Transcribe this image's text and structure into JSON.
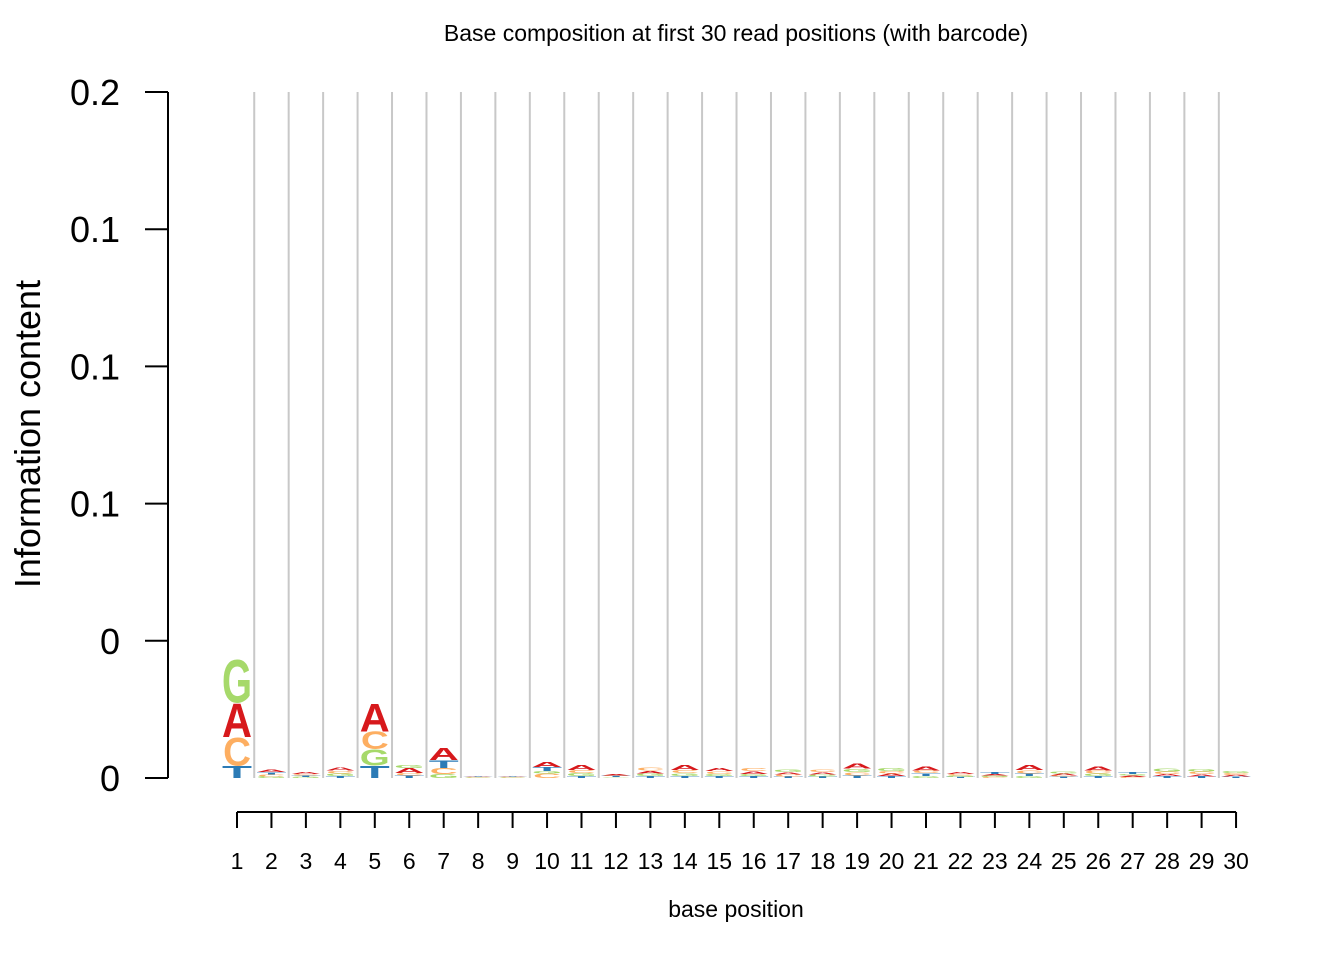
{
  "chart_data": {
    "type": "sequence-logo",
    "title": "Base composition at first 30 read positions (with barcode)",
    "xlabel": "base position",
    "ylabel": "Information content",
    "ylim": [
      0,
      0.25
    ],
    "yticks": [
      0,
      0.05,
      0.1,
      0.15,
      0.2,
      0.25
    ],
    "ytick_labels": [
      "0",
      "0",
      "0.1",
      "0.1",
      "0.1",
      "0.2"
    ],
    "xticks": [
      1,
      2,
      3,
      4,
      5,
      6,
      7,
      8,
      9,
      10,
      11,
      12,
      13,
      14,
      15,
      16,
      17,
      18,
      19,
      20,
      21,
      22,
      23,
      24,
      25,
      26,
      27,
      28,
      29,
      30
    ],
    "xtick_labels": [
      "1",
      "2",
      "3",
      "4",
      "5",
      "6",
      "7",
      "8",
      "9",
      "10",
      "11",
      "12",
      "13",
      "14",
      "15",
      "16",
      "17",
      "18",
      "19",
      "20",
      "21",
      "22",
      "23",
      "24",
      "25",
      "26",
      "27",
      "28",
      "29",
      "30"
    ],
    "grid": "vertical",
    "letters": [
      "T",
      "C",
      "G",
      "A"
    ],
    "colors": {
      "A": "#d7191c",
      "C": "#fdae61",
      "G": "#a6d96a",
      "T": "#2c7bb6",
      "grid": "#c8c8c8"
    },
    "positions": [
      {
        "pos": 1,
        "stack": [
          [
            "T",
            0.0045
          ],
          [
            "C",
            0.0105
          ],
          [
            "A",
            0.0125
          ],
          [
            "G",
            0.016
          ]
        ]
      },
      {
        "pos": 2,
        "stack": [
          [
            "G",
            0.0006
          ],
          [
            "C",
            0.0007
          ],
          [
            "T",
            0.0008
          ],
          [
            "A",
            0.001
          ]
        ]
      },
      {
        "pos": 3,
        "stack": [
          [
            "G",
            0.0004
          ],
          [
            "T",
            0.0005
          ],
          [
            "C",
            0.0005
          ],
          [
            "A",
            0.0006
          ]
        ]
      },
      {
        "pos": 4,
        "stack": [
          [
            "T",
            0.0008
          ],
          [
            "G",
            0.0009
          ],
          [
            "C",
            0.001
          ],
          [
            "A",
            0.0013
          ]
        ]
      },
      {
        "pos": 5,
        "stack": [
          [
            "T",
            0.0045
          ],
          [
            "G",
            0.006
          ],
          [
            "C",
            0.0065
          ],
          [
            "A",
            0.0105
          ]
        ]
      },
      {
        "pos": 6,
        "stack": [
          [
            "T",
            0.0009
          ],
          [
            "C",
            0.001
          ],
          [
            "A",
            0.0018
          ],
          [
            "G",
            0.0013
          ]
        ]
      },
      {
        "pos": 7,
        "stack": [
          [
            "G",
            0.0015
          ],
          [
            "C",
            0.0022
          ],
          [
            "T",
            0.0028
          ],
          [
            "A",
            0.0045
          ]
        ]
      },
      {
        "pos": 8,
        "stack": [
          [
            "G",
            0.0002
          ],
          [
            "C",
            0.0002
          ],
          [
            "T",
            0.0002
          ],
          [
            "A",
            0.0002
          ]
        ]
      },
      {
        "pos": 9,
        "stack": [
          [
            "G",
            0.0002
          ],
          [
            "C",
            0.0002
          ],
          [
            "T",
            0.0002
          ],
          [
            "A",
            0.0002
          ]
        ]
      },
      {
        "pos": 10,
        "stack": [
          [
            "C",
            0.0016
          ],
          [
            "G",
            0.001
          ],
          [
            "T",
            0.0014
          ],
          [
            "A",
            0.002
          ]
        ]
      },
      {
        "pos": 11,
        "stack": [
          [
            "T",
            0.0007
          ],
          [
            "G",
            0.0011
          ],
          [
            "C",
            0.0011
          ],
          [
            "A",
            0.0018
          ]
        ]
      },
      {
        "pos": 12,
        "stack": [
          [
            "G",
            0.0003
          ],
          [
            "T",
            0.0004
          ],
          [
            "C",
            0.0003
          ],
          [
            "A",
            0.0004
          ]
        ]
      },
      {
        "pos": 13,
        "stack": [
          [
            "T",
            0.0008
          ],
          [
            "G",
            0.0009
          ],
          [
            "A",
            0.001
          ],
          [
            "C",
            0.0011
          ]
        ]
      },
      {
        "pos": 14,
        "stack": [
          [
            "T",
            0.0008
          ],
          [
            "G",
            0.001
          ],
          [
            "C",
            0.0011
          ],
          [
            "A",
            0.0018
          ]
        ]
      },
      {
        "pos": 15,
        "stack": [
          [
            "T",
            0.0007
          ],
          [
            "G",
            0.0008
          ],
          [
            "C",
            0.001
          ],
          [
            "A",
            0.0012
          ]
        ]
      },
      {
        "pos": 16,
        "stack": [
          [
            "T",
            0.0007
          ],
          [
            "G",
            0.0008
          ],
          [
            "A",
            0.001
          ],
          [
            "C",
            0.0012
          ]
        ]
      },
      {
        "pos": 17,
        "stack": [
          [
            "T",
            0.0006
          ],
          [
            "C",
            0.0007
          ],
          [
            "A",
            0.0008
          ],
          [
            "G",
            0.0009
          ]
        ]
      },
      {
        "pos": 18,
        "stack": [
          [
            "T",
            0.0006
          ],
          [
            "G",
            0.0007
          ],
          [
            "A",
            0.0008
          ],
          [
            "C",
            0.0009
          ]
        ]
      },
      {
        "pos": 19,
        "stack": [
          [
            "T",
            0.001
          ],
          [
            "C",
            0.0012
          ],
          [
            "G",
            0.0012
          ],
          [
            "A",
            0.0018
          ]
        ]
      },
      {
        "pos": 20,
        "stack": [
          [
            "T",
            0.0008
          ],
          [
            "A",
            0.0009
          ],
          [
            "C",
            0.0009
          ],
          [
            "G",
            0.0011
          ]
        ]
      },
      {
        "pos": 21,
        "stack": [
          [
            "G",
            0.0008
          ],
          [
            "T",
            0.001
          ],
          [
            "C",
            0.001
          ],
          [
            "A",
            0.0015
          ]
        ]
      },
      {
        "pos": 22,
        "stack": [
          [
            "T",
            0.0004
          ],
          [
            "G",
            0.0005
          ],
          [
            "C",
            0.0005
          ],
          [
            "A",
            0.0006
          ]
        ]
      },
      {
        "pos": 23,
        "stack": [
          [
            "C",
            0.0004
          ],
          [
            "G",
            0.0005
          ],
          [
            "A",
            0.0005
          ],
          [
            "T",
            0.0006
          ]
        ]
      },
      {
        "pos": 24,
        "stack": [
          [
            "G",
            0.0008
          ],
          [
            "T",
            0.0009
          ],
          [
            "C",
            0.0012
          ],
          [
            "A",
            0.0018
          ]
        ]
      },
      {
        "pos": 25,
        "stack": [
          [
            "T",
            0.0005
          ],
          [
            "C",
            0.0005
          ],
          [
            "A",
            0.0006
          ],
          [
            "G",
            0.0007
          ]
        ]
      },
      {
        "pos": 26,
        "stack": [
          [
            "T",
            0.0008
          ],
          [
            "G",
            0.0009
          ],
          [
            "C",
            0.0011
          ],
          [
            "A",
            0.0015
          ]
        ]
      },
      {
        "pos": 27,
        "stack": [
          [
            "C",
            0.0004
          ],
          [
            "A",
            0.0005
          ],
          [
            "G",
            0.0005
          ],
          [
            "T",
            0.0007
          ]
        ]
      },
      {
        "pos": 28,
        "stack": [
          [
            "T",
            0.0007
          ],
          [
            "A",
            0.0008
          ],
          [
            "C",
            0.0009
          ],
          [
            "G",
            0.0011
          ]
        ]
      },
      {
        "pos": 29,
        "stack": [
          [
            "T",
            0.0006
          ],
          [
            "A",
            0.0008
          ],
          [
            "C",
            0.0009
          ],
          [
            "G",
            0.001
          ]
        ]
      },
      {
        "pos": 30,
        "stack": [
          [
            "T",
            0.0005
          ],
          [
            "A",
            0.0006
          ],
          [
            "C",
            0.0007
          ],
          [
            "G",
            0.0008
          ]
        ]
      }
    ]
  }
}
